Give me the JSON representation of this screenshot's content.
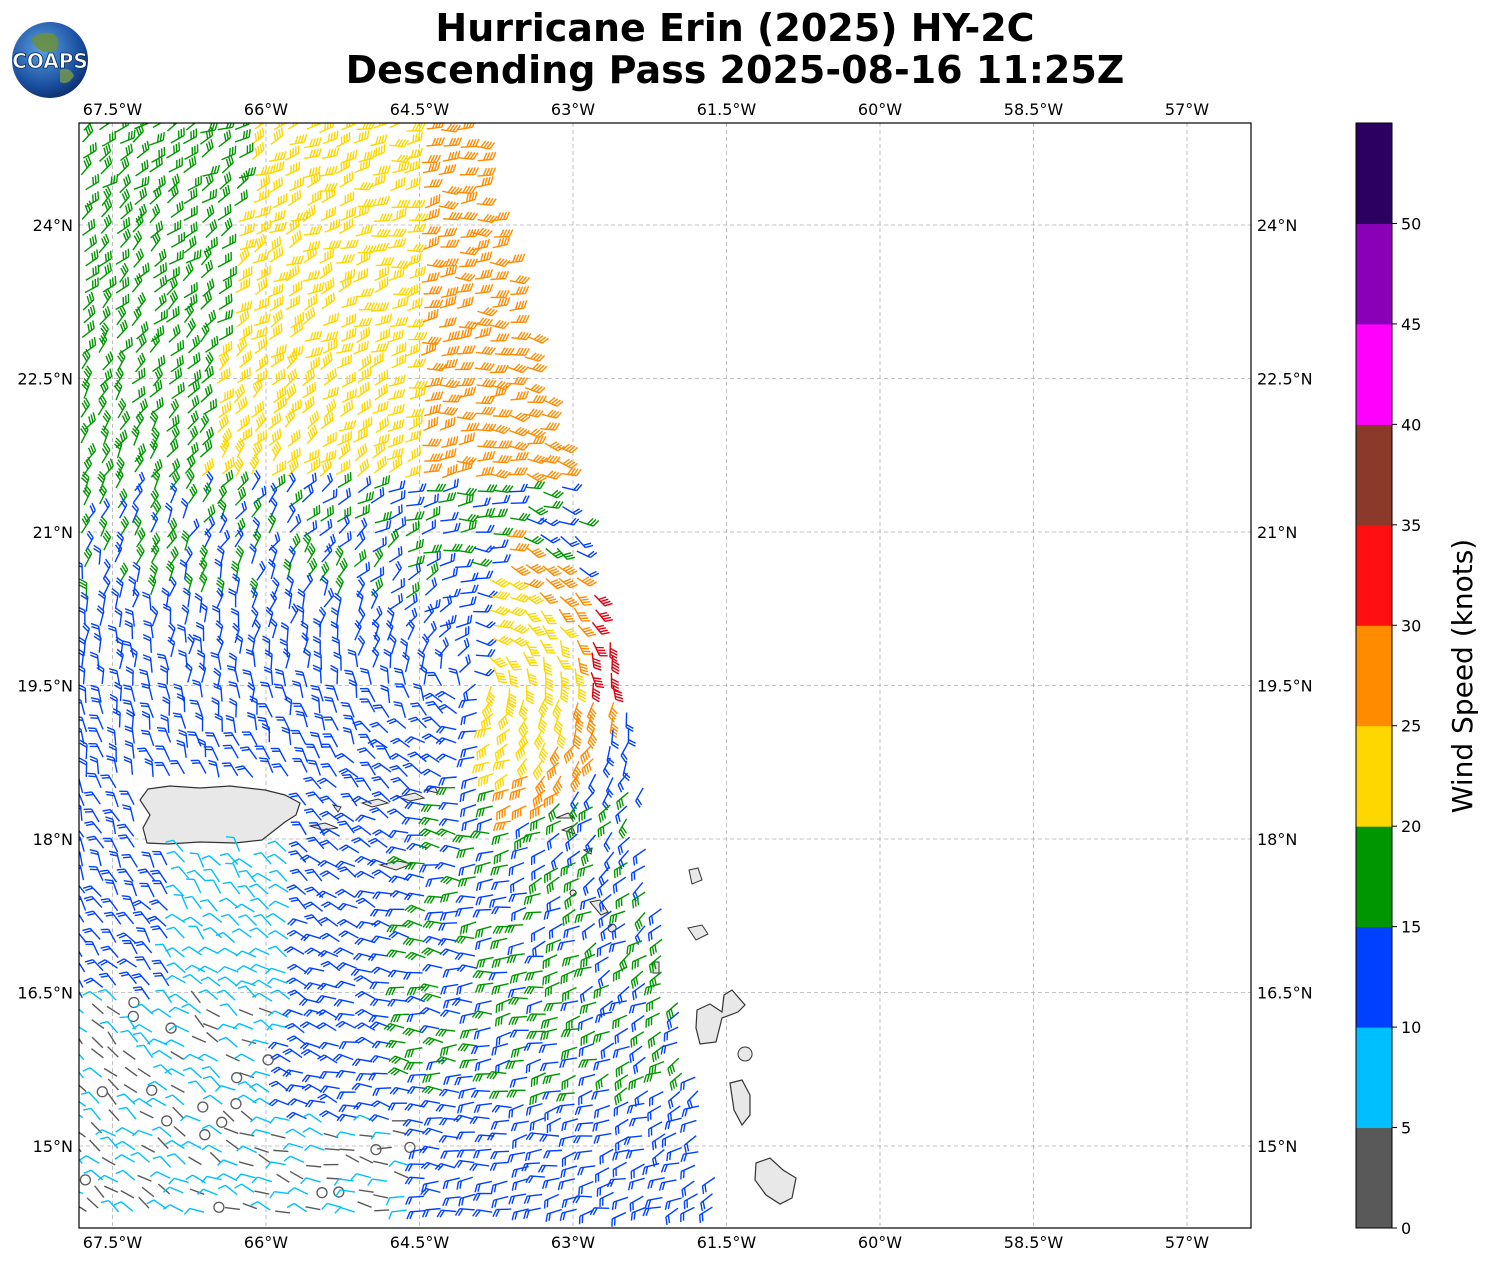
{
  "title": {
    "line1": "Hurricane Erin (2025) HY-2C",
    "line2": "Descending Pass 2025-08-16 11:25Z"
  },
  "logo": {
    "text": "COAPS"
  },
  "map": {
    "lon_ticks": [
      "67.5°W",
      "66°W",
      "64.5°W",
      "63°W",
      "61.5°W",
      "60°W",
      "58.5°W",
      "57°W"
    ],
    "lat_ticks": [
      "24°N",
      "22.5°N",
      "21°N",
      "19.5°N",
      "18°N",
      "16.5°N",
      "15°N"
    ],
    "grid": true
  },
  "colorbar": {
    "label": "Wind Speed (knots)",
    "ticks": [
      "0",
      "5",
      "10",
      "15",
      "20",
      "25",
      "30",
      "35",
      "40",
      "45",
      "50"
    ],
    "colors": [
      "#595959",
      "#00bfff",
      "#0040ff",
      "#009600",
      "#ffd700",
      "#ff8c00",
      "#ff0f0f",
      "#8b3a2a",
      "#ff00ff",
      "#8a00b8",
      "#2b0060"
    ]
  },
  "colors": {
    "calm": "#595959",
    "light": "#00bfff",
    "blue": "#0040ff",
    "green": "#009600",
    "yellow": "#ffd700",
    "orange": "#ff8c00",
    "red": "#e00010",
    "land": "#e8e8e8",
    "coast": "#333333"
  }
}
